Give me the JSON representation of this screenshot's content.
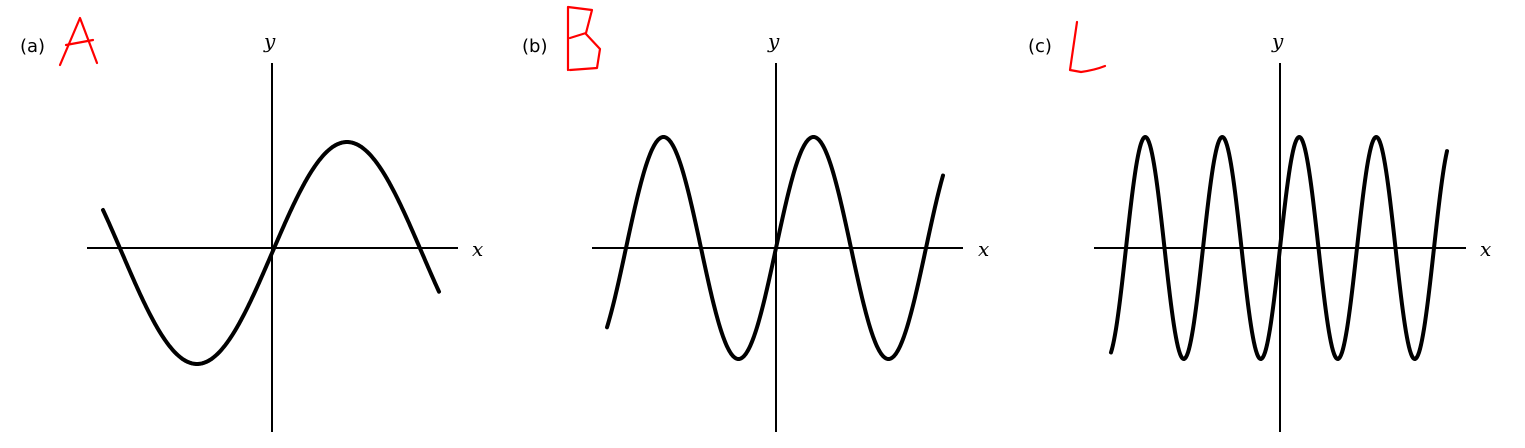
{
  "panels": [
    {
      "label": "(a)",
      "annotation": "A",
      "xlabel": "x",
      "ylabel": "y",
      "cycles_shown": 1.15
    },
    {
      "label": "(b)",
      "annotation": "B",
      "xlabel": "x",
      "ylabel": "y",
      "cycles_shown": 2.3
    },
    {
      "label": "(c)",
      "annotation": "C",
      "xlabel": "x",
      "ylabel": "y",
      "cycles_shown": 4.6
    }
  ],
  "colors": {
    "curve": "#000000",
    "annotation": "#ff0000",
    "background": "#ffffff"
  }
}
